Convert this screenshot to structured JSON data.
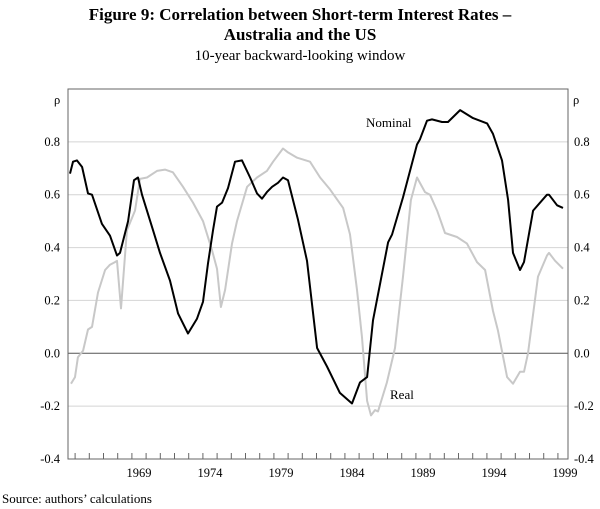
{
  "chart_data": {
    "type": "line",
    "title_line1": "Figure 9: Correlation between Short-term Interest Rates –",
    "title_line2": "Australia and the US",
    "subtitle": "10-year backward-looking window",
    "ylabel_left": "ρ",
    "ylabel_right": "ρ",
    "xlabel": "",
    "xlim": [
      1964.0,
      1999.21
    ],
    "ylim": [
      -0.4,
      1.0
    ],
    "yticks": [
      -0.4,
      -0.2,
      0.0,
      0.2,
      0.4,
      0.6,
      0.8
    ],
    "ytick_labels": [
      "-0.4",
      "-0.2",
      "0.0",
      "0.2",
      "0.4",
      "0.6",
      "0.8"
    ],
    "xtick_labels": [
      "1969",
      "1974",
      "1979",
      "1984",
      "1989",
      "1994",
      "1999"
    ],
    "xtick_values": [
      1969,
      1974,
      1979,
      1984,
      1989,
      1994,
      1999
    ],
    "grid": true,
    "series": [
      {
        "name": "Nominal",
        "label": "Nominal",
        "color": "#000000",
        "x": [
          1964.14,
          1964.35,
          1964.63,
          1964.99,
          1965.41,
          1965.69,
          1966.39,
          1966.96,
          1967.45,
          1967.66,
          1968.23,
          1968.65,
          1968.93,
          1969.21,
          1969.99,
          1970.48,
          1971.18,
          1971.75,
          1972.45,
          1973.08,
          1973.51,
          1973.86,
          1974.21,
          1974.49,
          1974.85,
          1975.27,
          1975.76,
          1976.25,
          1976.82,
          1977.31,
          1977.66,
          1978.01,
          1978.37,
          1978.79,
          1979.14,
          1979.49,
          1980.2,
          1980.83,
          1981.54,
          1982.24,
          1983.15,
          1984.0,
          1984.56,
          1985.06,
          1985.48,
          1986.54,
          1986.82,
          1987.59,
          1988.58,
          1988.79,
          1989.28,
          1989.63,
          1990.34,
          1990.76,
          1991.61,
          1992.52,
          1993.51,
          1993.93,
          1994.56,
          1994.99,
          1995.34,
          1995.83,
          1996.11,
          1996.75,
          1997.73,
          1997.87,
          1998.44,
          1998.86
        ],
        "y": [
          0.68,
          0.725,
          0.73,
          0.705,
          0.605,
          0.6,
          0.49,
          0.445,
          0.37,
          0.38,
          0.5,
          0.655,
          0.665,
          0.6,
          0.465,
          0.38,
          0.275,
          0.15,
          0.075,
          0.13,
          0.195,
          0.34,
          0.465,
          0.555,
          0.57,
          0.625,
          0.725,
          0.73,
          0.665,
          0.605,
          0.585,
          0.61,
          0.63,
          0.645,
          0.665,
          0.655,
          0.505,
          0.35,
          0.02,
          -0.05,
          -0.15,
          -0.19,
          -0.11,
          -0.09,
          0.125,
          0.42,
          0.45,
          0.59,
          0.79,
          0.81,
          0.88,
          0.885,
          0.875,
          0.875,
          0.92,
          0.89,
          0.87,
          0.83,
          0.73,
          0.58,
          0.38,
          0.315,
          0.345,
          0.54,
          0.6,
          0.6,
          0.56,
          0.55
        ]
      },
      {
        "name": "Real",
        "label": "Real",
        "color": "#c8c8c8",
        "x": [
          1964.21,
          1964.49,
          1964.7,
          1965.06,
          1965.41,
          1965.69,
          1966.11,
          1966.61,
          1966.96,
          1967.31,
          1967.45,
          1967.73,
          1968.15,
          1968.72,
          1969.07,
          1969.56,
          1970.27,
          1970.83,
          1971.39,
          1972.1,
          1972.8,
          1973.51,
          1974.14,
          1974.49,
          1974.77,
          1975.06,
          1975.55,
          1975.9,
          1976.61,
          1977.31,
          1978.01,
          1978.44,
          1979.14,
          1979.49,
          1980.13,
          1981.04,
          1981.75,
          1982.45,
          1983.37,
          1983.86,
          1984.35,
          1984.7,
          1985.06,
          1985.34,
          1985.62,
          1985.83,
          1986.46,
          1987.03,
          1987.59,
          1988.15,
          1988.58,
          1989.14,
          1989.49,
          1989.99,
          1990.55,
          1991.39,
          1992.1,
          1992.8,
          1993.37,
          1993.93,
          1994.28,
          1994.92,
          1995.34,
          1995.83,
          1996.11,
          1996.39,
          1997.1,
          1997.73,
          1997.87,
          1998.3,
          1998.86
        ],
        "y": [
          -0.115,
          -0.09,
          -0.015,
          0.01,
          0.09,
          0.1,
          0.23,
          0.315,
          0.335,
          0.345,
          0.35,
          0.17,
          0.465,
          0.54,
          0.66,
          0.665,
          0.69,
          0.695,
          0.685,
          0.63,
          0.57,
          0.5,
          0.39,
          0.32,
          0.175,
          0.24,
          0.415,
          0.5,
          0.63,
          0.665,
          0.69,
          0.725,
          0.775,
          0.76,
          0.74,
          0.725,
          0.665,
          0.62,
          0.55,
          0.45,
          0.24,
          0.06,
          -0.18,
          -0.235,
          -0.215,
          -0.22,
          -0.11,
          0.02,
          0.29,
          0.58,
          0.665,
          0.61,
          0.6,
          0.54,
          0.455,
          0.44,
          0.415,
          0.345,
          0.315,
          0.16,
          0.085,
          -0.09,
          -0.115,
          -0.07,
          -0.07,
          0.0,
          0.29,
          0.37,
          0.38,
          0.35,
          0.32
        ]
      }
    ],
    "source": "Source: authors’ calculations"
  }
}
